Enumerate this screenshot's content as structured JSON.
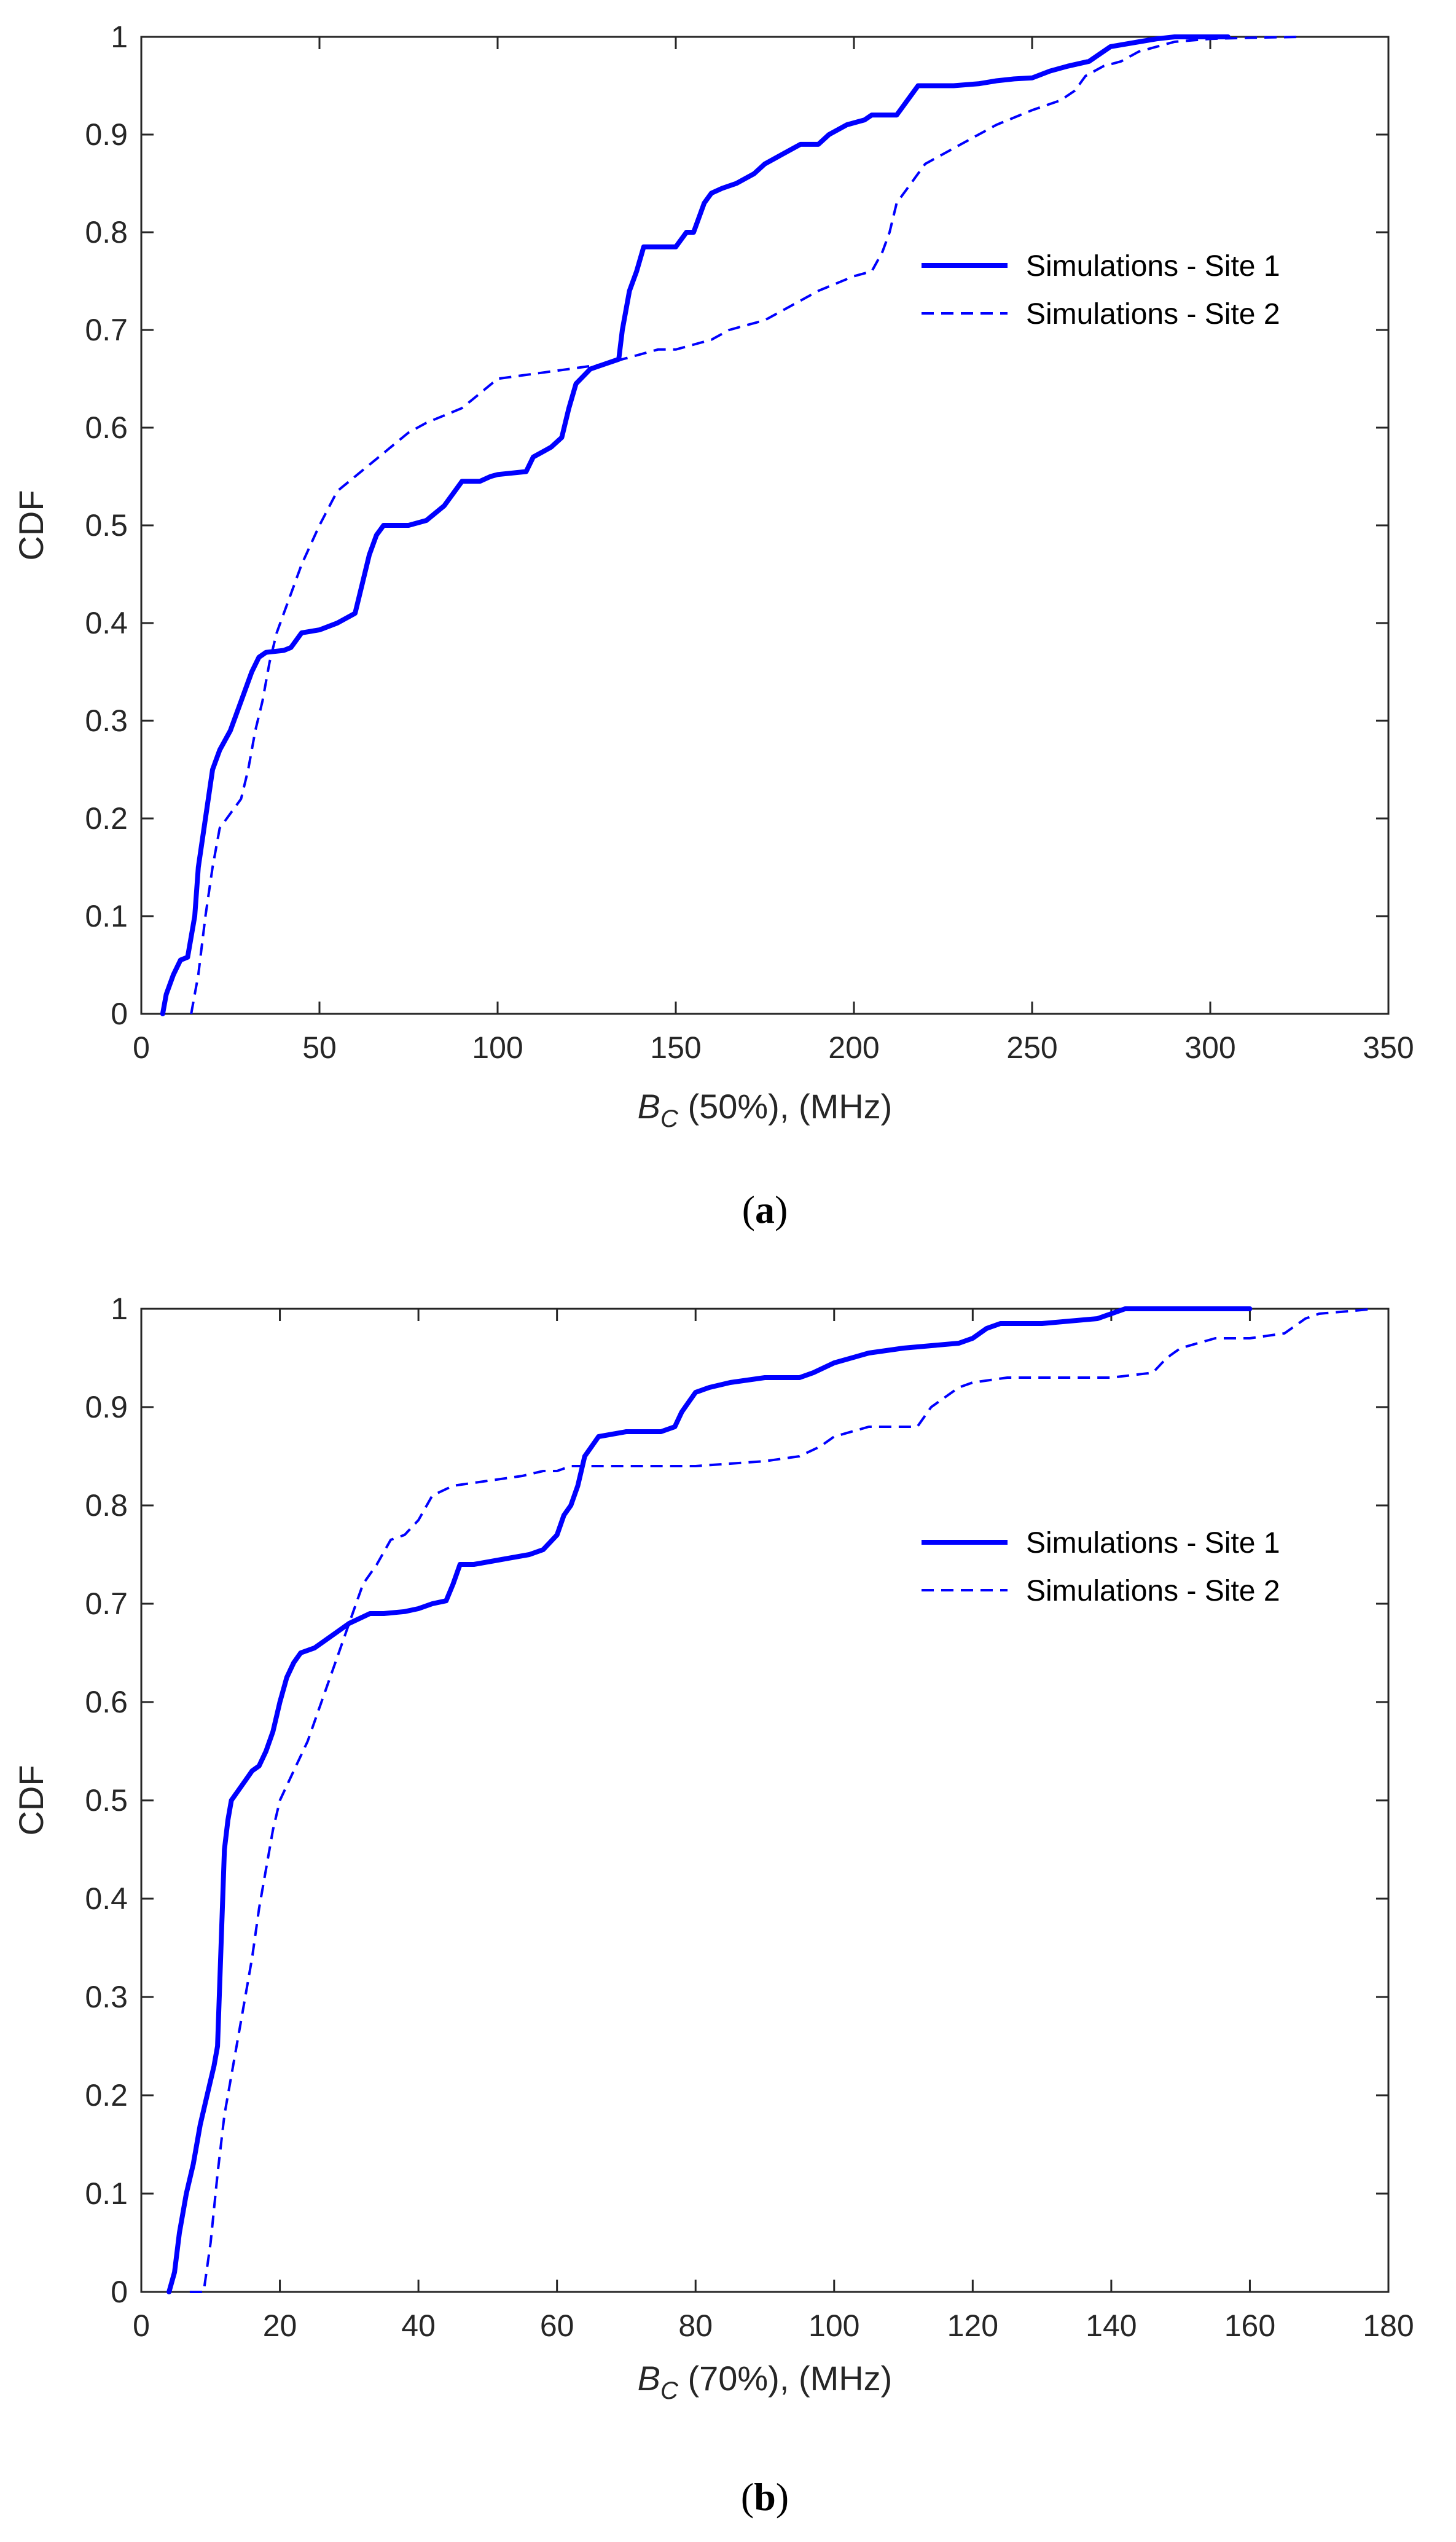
{
  "chart_data": [
    {
      "type": "line",
      "caption_open": "(",
      "caption_letter": "a",
      "caption_close": ")",
      "ylabel": "CDF",
      "xlabel_symbol": "B",
      "xlabel_subscript": "C",
      "xlabel_rest": " (50%), (MHz)",
      "xlim": [
        0,
        350
      ],
      "ylim": [
        0,
        1
      ],
      "xticks": [
        0,
        50,
        100,
        150,
        200,
        250,
        300,
        350
      ],
      "yticks": [
        0,
        0.1,
        0.2,
        0.3,
        0.4,
        0.5,
        0.6,
        0.7,
        0.8,
        0.9,
        1
      ],
      "legend_position": "upper-right",
      "series": [
        {
          "name": "Simulations - Site 1",
          "style": "solid",
          "color": "#0000ff",
          "x": [
            6,
            7,
            9,
            11,
            13,
            15,
            16,
            18,
            20,
            22,
            25,
            28,
            31,
            33,
            35,
            40,
            42,
            45,
            50,
            55,
            60,
            62,
            64,
            66,
            68,
            70,
            75,
            80,
            85,
            88,
            90,
            95,
            98,
            100,
            108,
            110,
            115,
            118,
            120,
            122,
            126,
            130,
            134,
            135,
            137,
            139,
            141,
            142,
            150,
            153,
            155,
            158,
            160,
            163,
            167,
            172,
            175,
            180,
            185,
            190,
            193,
            198,
            203,
            205,
            208,
            212,
            214,
            216,
            218,
            222,
            228,
            235,
            240,
            245,
            250,
            255,
            260,
            266,
            268,
            272,
            280,
            285,
            290,
            300,
            305
          ],
          "y": [
            0,
            0.02,
            0.04,
            0.055,
            0.058,
            0.1,
            0.15,
            0.2,
            0.25,
            0.27,
            0.29,
            0.32,
            0.35,
            0.365,
            0.37,
            0.372,
            0.375,
            0.39,
            0.393,
            0.4,
            0.41,
            0.44,
            0.47,
            0.49,
            0.5,
            0.5,
            0.5,
            0.505,
            0.52,
            0.535,
            0.545,
            0.545,
            0.55,
            0.552,
            0.555,
            0.57,
            0.58,
            0.59,
            0.62,
            0.645,
            0.66,
            0.665,
            0.67,
            0.7,
            0.74,
            0.76,
            0.785,
            0.785,
            0.785,
            0.8,
            0.8,
            0.83,
            0.84,
            0.845,
            0.85,
            0.86,
            0.87,
            0.88,
            0.89,
            0.89,
            0.9,
            0.91,
            0.915,
            0.92,
            0.92,
            0.92,
            0.93,
            0.94,
            0.95,
            0.95,
            0.95,
            0.952,
            0.955,
            0.957,
            0.958,
            0.965,
            0.97,
            0.975,
            0.98,
            0.99,
            0.995,
            0.998,
            1,
            1,
            1
          ]
        },
        {
          "name": "Simulations - Site 2",
          "style": "dashed",
          "color": "#0000ff",
          "x": [
            14,
            16,
            18,
            20,
            22,
            24,
            26,
            28,
            30,
            32,
            34,
            36,
            38,
            40,
            45,
            50,
            55,
            60,
            65,
            70,
            75,
            80,
            90,
            95,
            100,
            110,
            120,
            130,
            135,
            140,
            145,
            150,
            160,
            165,
            170,
            175,
            180,
            190,
            200,
            205,
            208,
            210,
            212,
            215,
            220,
            230,
            240,
            250,
            258,
            262,
            265,
            270,
            275,
            280,
            285,
            290,
            300,
            310,
            325
          ],
          "y": [
            0,
            0.04,
            0.1,
            0.15,
            0.19,
            0.2,
            0.21,
            0.22,
            0.25,
            0.29,
            0.32,
            0.36,
            0.39,
            0.41,
            0.46,
            0.5,
            0.535,
            0.55,
            0.565,
            0.58,
            0.595,
            0.605,
            0.62,
            0.635,
            0.65,
            0.655,
            0.66,
            0.665,
            0.67,
            0.675,
            0.68,
            0.68,
            0.69,
            0.7,
            0.705,
            0.71,
            0.72,
            0.74,
            0.755,
            0.76,
            0.78,
            0.8,
            0.83,
            0.845,
            0.87,
            0.89,
            0.91,
            0.925,
            0.935,
            0.945,
            0.96,
            0.97,
            0.975,
            0.985,
            0.99,
            0.995,
            0.998,
            0.999,
            1
          ]
        }
      ]
    },
    {
      "type": "line",
      "caption_open": "(",
      "caption_letter": "b",
      "caption_close": ")",
      "ylabel": "CDF",
      "xlabel_symbol": "B",
      "xlabel_subscript": "C",
      "xlabel_rest": " (70%), (MHz)",
      "xlim": [
        0,
        180
      ],
      "ylim": [
        0,
        1
      ],
      "xticks": [
        0,
        20,
        40,
        60,
        80,
        100,
        120,
        140,
        160,
        180
      ],
      "yticks": [
        0,
        0.1,
        0.2,
        0.3,
        0.4,
        0.5,
        0.6,
        0.7,
        0.8,
        0.9,
        1
      ],
      "legend_position": "upper-right",
      "series": [
        {
          "name": "Simulations - Site 1",
          "style": "solid",
          "color": "#0000ff",
          "x": [
            4,
            4.8,
            5.5,
            6.5,
            7.5,
            8.5,
            9.5,
            10.5,
            11,
            11.5,
            12,
            12.5,
            13,
            14,
            15,
            16,
            17,
            18,
            19,
            20,
            21,
            22,
            23,
            25,
            26,
            28,
            30,
            33,
            35,
            38,
            40,
            42,
            44,
            45,
            46,
            48,
            52,
            56,
            58,
            60,
            61,
            62,
            63,
            64,
            65,
            66,
            70,
            74,
            75,
            77,
            78,
            79,
            80,
            82,
            85,
            90,
            95,
            97,
            100,
            105,
            110,
            118,
            120,
            122,
            124,
            130,
            138,
            140,
            142,
            150,
            160
          ],
          "y": [
            0,
            0.02,
            0.06,
            0.1,
            0.13,
            0.17,
            0.2,
            0.23,
            0.25,
            0.35,
            0.45,
            0.48,
            0.5,
            0.51,
            0.52,
            0.53,
            0.535,
            0.55,
            0.57,
            0.6,
            0.625,
            0.64,
            0.65,
            0.655,
            0.66,
            0.67,
            0.68,
            0.69,
            0.69,
            0.692,
            0.695,
            0.7,
            0.703,
            0.72,
            0.74,
            0.74,
            0.745,
            0.75,
            0.755,
            0.77,
            0.79,
            0.8,
            0.82,
            0.85,
            0.86,
            0.87,
            0.875,
            0.875,
            0.875,
            0.88,
            0.895,
            0.905,
            0.915,
            0.92,
            0.925,
            0.93,
            0.93,
            0.935,
            0.945,
            0.955,
            0.96,
            0.965,
            0.97,
            0.98,
            0.985,
            0.985,
            0.99,
            0.995,
            1,
            1,
            1
          ]
        },
        {
          "name": "Simulations - Site 2",
          "style": "dashed",
          "color": "#0000ff",
          "x": [
            7,
            9,
            10,
            11,
            12,
            13,
            14,
            15,
            16,
            17,
            18,
            19,
            20,
            22,
            24,
            26,
            28,
            30,
            32,
            34,
            36,
            38,
            40,
            42,
            45,
            50,
            55,
            58,
            60,
            62,
            65,
            70,
            80,
            90,
            95,
            98,
            100,
            105,
            110,
            112,
            114,
            116,
            118,
            120,
            125,
            130,
            140,
            146,
            148,
            150,
            155,
            160,
            165,
            168,
            170,
            175,
            178
          ],
          "y": [
            0,
            0,
            0.05,
            0.12,
            0.18,
            0.22,
            0.26,
            0.3,
            0.34,
            0.39,
            0.43,
            0.47,
            0.5,
            0.53,
            0.56,
            0.6,
            0.64,
            0.68,
            0.72,
            0.74,
            0.765,
            0.77,
            0.785,
            0.81,
            0.82,
            0.825,
            0.83,
            0.835,
            0.835,
            0.84,
            0.84,
            0.84,
            0.84,
            0.845,
            0.85,
            0.86,
            0.87,
            0.88,
            0.88,
            0.88,
            0.9,
            0.91,
            0.92,
            0.925,
            0.93,
            0.93,
            0.93,
            0.935,
            0.95,
            0.96,
            0.97,
            0.97,
            0.975,
            0.99,
            0.995,
            0.998,
            1
          ]
        }
      ]
    }
  ]
}
